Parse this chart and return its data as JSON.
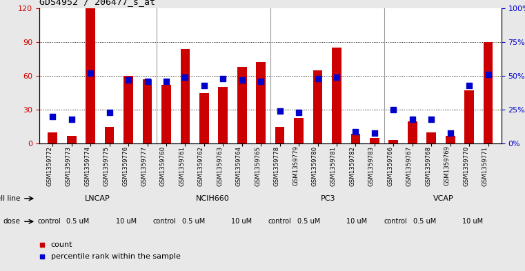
{
  "title": "GDS4952 / 206477_s_at",
  "gsm_labels": [
    "GSM1359772",
    "GSM1359773",
    "GSM1359774",
    "GSM1359775",
    "GSM1359776",
    "GSM1359777",
    "GSM1359760",
    "GSM1359761",
    "GSM1359762",
    "GSM1359763",
    "GSM1359764",
    "GSM1359765",
    "GSM1359778",
    "GSM1359779",
    "GSM1359780",
    "GSM1359781",
    "GSM1359782",
    "GSM1359783",
    "GSM1359766",
    "GSM1359767",
    "GSM1359768",
    "GSM1359769",
    "GSM1359770",
    "GSM1359771"
  ],
  "counts": [
    10,
    7,
    120,
    15,
    60,
    57,
    52,
    84,
    45,
    50,
    68,
    72,
    15,
    23,
    65,
    85,
    9,
    5,
    3,
    20,
    10,
    7,
    47,
    90
  ],
  "percentile_ranks": [
    20,
    18,
    52,
    23,
    47,
    46,
    46,
    49,
    43,
    48,
    47,
    46,
    24,
    23,
    48,
    49,
    9,
    8,
    25,
    18,
    18,
    8,
    43,
    51
  ],
  "ylim_left": [
    0,
    120
  ],
  "ylim_right": [
    0,
    100
  ],
  "yticks_left": [
    0,
    30,
    60,
    90,
    120
  ],
  "yticks_right": [
    0,
    25,
    50,
    75,
    100
  ],
  "bar_color": "#cc0000",
  "dot_color": "#0000cc",
  "bg_color": "#e8e8e8",
  "plot_bg": "#ffffff",
  "cell_line_groups": [
    {
      "name": "LNCAP",
      "cols": [
        0,
        1,
        2,
        3,
        4,
        5
      ],
      "color": "#ccffcc"
    },
    {
      "name": "NCIH660",
      "cols": [
        6,
        7,
        8,
        9,
        10,
        11
      ],
      "color": "#88ee88"
    },
    {
      "name": "PC3",
      "cols": [
        12,
        13,
        14,
        15,
        16,
        17
      ],
      "color": "#88ee88"
    },
    {
      "name": "VCAP",
      "cols": [
        18,
        19,
        20,
        21,
        22,
        23
      ],
      "color": "#44bb44"
    }
  ],
  "dose_configs": [
    {
      "label": "control",
      "cols": [
        0
      ],
      "color": "#ffccff"
    },
    {
      "label": "0.5 uM",
      "cols": [
        1,
        2
      ],
      "color": "#dd66dd"
    },
    {
      "label": "10 uM",
      "cols": [
        3,
        4,
        5
      ],
      "color": "#cc44cc"
    },
    {
      "label": "control",
      "cols": [
        6
      ],
      "color": "#ffccff"
    },
    {
      "label": "0.5 uM",
      "cols": [
        7,
        8
      ],
      "color": "#dd66dd"
    },
    {
      "label": "10 uM",
      "cols": [
        9,
        10,
        11
      ],
      "color": "#cc44cc"
    },
    {
      "label": "control",
      "cols": [
        12
      ],
      "color": "#ffccff"
    },
    {
      "label": "0.5 uM",
      "cols": [
        13,
        14
      ],
      "color": "#dd66dd"
    },
    {
      "label": "10 uM",
      "cols": [
        15,
        16,
        17
      ],
      "color": "#cc44cc"
    },
    {
      "label": "control",
      "cols": [
        18
      ],
      "color": "#ffccff"
    },
    {
      "label": "0.5 uM",
      "cols": [
        19,
        20
      ],
      "color": "#dd66dd"
    },
    {
      "label": "10 uM",
      "cols": [
        21,
        22,
        23
      ],
      "color": "#cc44cc"
    }
  ],
  "legend_count_color": "#cc0000",
  "legend_percentile_color": "#0000cc"
}
